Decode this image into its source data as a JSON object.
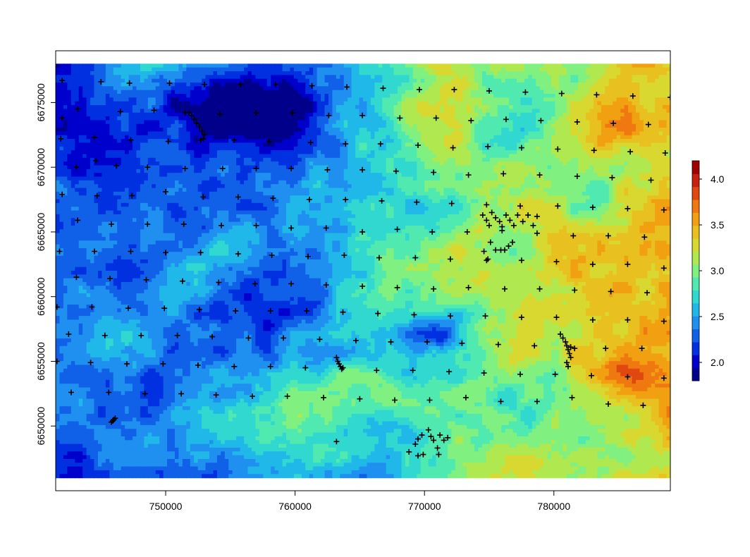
{
  "chart_data": {
    "type": "heatmap",
    "title": "",
    "xlabel": "",
    "ylabel": "",
    "xlim": [
      741500,
      789000
    ],
    "ylim": [
      6645000,
      6679000
    ],
    "raster_extent": {
      "x": [
        741500,
        789000
      ],
      "y": [
        6646000,
        6678000
      ]
    },
    "x_ticks": [
      750000,
      760000,
      770000,
      780000
    ],
    "y_ticks": [
      6650000,
      6655000,
      6660000,
      6665000,
      6670000,
      6675000
    ],
    "x_tick_labels": [
      "750000",
      "760000",
      "770000",
      "780000"
    ],
    "y_tick_labels": [
      "6650000",
      "6655000",
      "6660000",
      "6665000",
      "6670000",
      "6675000"
    ],
    "value_range": [
      1.8,
      4.2
    ],
    "colorbar": {
      "ticks": [
        2.0,
        2.5,
        3.0,
        3.5,
        4.0
      ],
      "tick_labels": [
        "2.0",
        "2.5",
        "3.0",
        "3.5",
        "4.0"
      ],
      "colors": [
        "#00008B",
        "#0000CD",
        "#0030E0",
        "#1060E8",
        "#2090F0",
        "#20B8E8",
        "#30D8D0",
        "#50EAB0",
        "#80F080",
        "#B0E850",
        "#D8D830",
        "#E8C020",
        "#F0A010",
        "#F07810",
        "#E04810",
        "#C82010",
        "#A00000"
      ]
    },
    "grid": false,
    "legend": "colorbar right",
    "points": [
      [
        742000,
        6676700
      ],
      [
        745000,
        6676600
      ],
      [
        747200,
        6676500
      ],
      [
        750300,
        6676500
      ],
      [
        753000,
        6676400
      ],
      [
        755800,
        6676400
      ],
      [
        758500,
        6676400
      ],
      [
        761300,
        6676300
      ],
      [
        764000,
        6676200
      ],
      [
        766800,
        6676100
      ],
      [
        769600,
        6676000
      ],
      [
        772300,
        6676000
      ],
      [
        775000,
        6675900
      ],
      [
        777800,
        6675800
      ],
      [
        780600,
        6675700
      ],
      [
        783300,
        6675600
      ],
      [
        786100,
        6675500
      ],
      [
        789000,
        6675400
      ],
      [
        742000,
        6673800
      ],
      [
        743200,
        6674500
      ],
      [
        746500,
        6674300
      ],
      [
        749100,
        6674400
      ],
      [
        751500,
        6674200
      ],
      [
        754200,
        6674100
      ],
      [
        757000,
        6674200
      ],
      [
        759800,
        6674200
      ],
      [
        762600,
        6674000
      ],
      [
        765200,
        6674000
      ],
      [
        768100,
        6673800
      ],
      [
        770900,
        6673800
      ],
      [
        773600,
        6673600
      ],
      [
        776300,
        6673700
      ],
      [
        779000,
        6673600
      ],
      [
        781800,
        6673500
      ],
      [
        784600,
        6673400
      ],
      [
        787300,
        6673300
      ],
      [
        741900,
        6672200
      ],
      [
        744500,
        6672300
      ],
      [
        747300,
        6672100
      ],
      [
        750200,
        6672000
      ],
      [
        752700,
        6672100
      ],
      [
        755300,
        6672100
      ],
      [
        758000,
        6672000
      ],
      [
        761200,
        6671900
      ],
      [
        763900,
        6671800
      ],
      [
        766600,
        6671800
      ],
      [
        769500,
        6671700
      ],
      [
        772200,
        6671500
      ],
      [
        774900,
        6671600
      ],
      [
        777500,
        6671500
      ],
      [
        780300,
        6671400
      ],
      [
        783100,
        6671300
      ],
      [
        785900,
        6671200
      ],
      [
        788600,
        6671100
      ],
      [
        743100,
        6670000
      ],
      [
        744600,
        6670500
      ],
      [
        746200,
        6670100
      ],
      [
        748600,
        6670000
      ],
      [
        751500,
        6669900
      ],
      [
        754400,
        6669900
      ],
      [
        757000,
        6669900
      ],
      [
        759700,
        6669900
      ],
      [
        762500,
        6669800
      ],
      [
        765200,
        6669800
      ],
      [
        767800,
        6669700
      ],
      [
        770700,
        6669600
      ],
      [
        773400,
        6669400
      ],
      [
        776100,
        6669500
      ],
      [
        778900,
        6669400
      ],
      [
        781800,
        6669300
      ],
      [
        784500,
        6669200
      ],
      [
        787500,
        6669000
      ],
      [
        742000,
        6667900
      ],
      [
        744700,
        6667800
      ],
      [
        747400,
        6667800
      ],
      [
        750000,
        6668100
      ],
      [
        752900,
        6667700
      ],
      [
        755600,
        6667700
      ],
      [
        758300,
        6667600
      ],
      [
        761100,
        6667500
      ],
      [
        763900,
        6667500
      ],
      [
        766700,
        6667400
      ],
      [
        769400,
        6667300
      ],
      [
        772100,
        6667200
      ],
      [
        774800,
        6667100
      ],
      [
        777400,
        6667000
      ],
      [
        780300,
        6667000
      ],
      [
        783000,
        6666900
      ],
      [
        785700,
        6666800
      ],
      [
        788500,
        6666700
      ],
      [
        743200,
        6665900
      ],
      [
        745800,
        6665600
      ],
      [
        748600,
        6665600
      ],
      [
        751400,
        6665600
      ],
      [
        754300,
        6665500
      ],
      [
        757000,
        6665500
      ],
      [
        759700,
        6665300
      ],
      [
        762400,
        6665300
      ],
      [
        765200,
        6665000
      ],
      [
        767900,
        6665200
      ],
      [
        770600,
        6665000
      ],
      [
        773300,
        6665000
      ],
      [
        776000,
        6665100
      ],
      [
        778700,
        6664900
      ],
      [
        781500,
        6664700
      ],
      [
        784200,
        6664700
      ],
      [
        787000,
        6664600
      ],
      [
        741800,
        6663500
      ],
      [
        744500,
        6663500
      ],
      [
        747300,
        6663500
      ],
      [
        750000,
        6663400
      ],
      [
        752700,
        6663400
      ],
      [
        755600,
        6663300
      ],
      [
        758200,
        6663200
      ],
      [
        761000,
        6663100
      ],
      [
        763800,
        6663200
      ],
      [
        766500,
        6663000
      ],
      [
        769300,
        6663000
      ],
      [
        772000,
        6662900
      ],
      [
        774800,
        6662800
      ],
      [
        777500,
        6662800
      ],
      [
        780200,
        6662700
      ],
      [
        783000,
        6662500
      ],
      [
        785700,
        6662500
      ],
      [
        788500,
        6662200
      ],
      [
        743100,
        6661500
      ],
      [
        745700,
        6661400
      ],
      [
        748500,
        6661300
      ],
      [
        751300,
        6661200
      ],
      [
        754100,
        6661100
      ],
      [
        756900,
        6661000
      ],
      [
        759700,
        6661000
      ],
      [
        762400,
        6660900
      ],
      [
        765200,
        6660800
      ],
      [
        767900,
        6660700
      ],
      [
        770700,
        6660600
      ],
      [
        773400,
        6660700
      ],
      [
        776200,
        6660600
      ],
      [
        778900,
        6660600
      ],
      [
        781600,
        6660500
      ],
      [
        784400,
        6660400
      ],
      [
        787200,
        6660300
      ],
      [
        741600,
        6659200
      ],
      [
        744300,
        6659200
      ],
      [
        747100,
        6659100
      ],
      [
        749900,
        6659100
      ],
      [
        752600,
        6659000
      ],
      [
        755400,
        6658900
      ],
      [
        758100,
        6658900
      ],
      [
        760900,
        6658900
      ],
      [
        763700,
        6658800
      ],
      [
        766400,
        6658700
      ],
      [
        769200,
        6658600
      ],
      [
        772000,
        6658500
      ],
      [
        774700,
        6658500
      ],
      [
        777500,
        6658400
      ],
      [
        780200,
        6658400
      ],
      [
        783000,
        6658200
      ],
      [
        785700,
        6658200
      ],
      [
        788500,
        6658100
      ],
      [
        742500,
        6657100
      ],
      [
        745300,
        6657000
      ],
      [
        748100,
        6657000
      ],
      [
        750900,
        6657000
      ],
      [
        753600,
        6656900
      ],
      [
        756400,
        6656800
      ],
      [
        759100,
        6656800
      ],
      [
        761900,
        6656700
      ],
      [
        764700,
        6656600
      ],
      [
        767400,
        6656500
      ],
      [
        770200,
        6656500
      ],
      [
        772900,
        6656400
      ],
      [
        775700,
        6656300
      ],
      [
        778500,
        6656200
      ],
      [
        781300,
        6656100
      ],
      [
        784000,
        6656000
      ],
      [
        786800,
        6656000
      ],
      [
        741600,
        6655000
      ],
      [
        744200,
        6654900
      ],
      [
        747000,
        6654800
      ],
      [
        749800,
        6654800
      ],
      [
        752500,
        6654700
      ],
      [
        755300,
        6654600
      ],
      [
        758100,
        6654600
      ],
      [
        760800,
        6654500
      ],
      [
        763600,
        6654400
      ],
      [
        766300,
        6654300
      ],
      [
        769100,
        6654300
      ],
      [
        771900,
        6654200
      ],
      [
        774600,
        6654100
      ],
      [
        777400,
        6654000
      ],
      [
        780100,
        6654000
      ],
      [
        782900,
        6653900
      ],
      [
        785700,
        6653800
      ],
      [
        788500,
        6653700
      ],
      [
        742700,
        6652600
      ],
      [
        745600,
        6652600
      ],
      [
        748400,
        6652500
      ],
      [
        751200,
        6652500
      ],
      [
        753900,
        6652400
      ],
      [
        756700,
        6652300
      ],
      [
        759400,
        6652300
      ],
      [
        762200,
        6652200
      ],
      [
        765000,
        6652100
      ],
      [
        767700,
        6652000
      ],
      [
        770400,
        6652000
      ],
      [
        773200,
        6652200
      ],
      [
        775900,
        6651900
      ],
      [
        778700,
        6651900
      ],
      [
        781400,
        6652200
      ],
      [
        784200,
        6651700
      ],
      [
        786900,
        6651600
      ],
      [
        763200,
        6648800
      ],
      [
        768800,
        6648000
      ],
      [
        769300,
        6648600
      ],
      [
        769500,
        6649000
      ],
      [
        769800,
        6649300
      ],
      [
        770300,
        6649700
      ],
      [
        770500,
        6649200
      ],
      [
        770700,
        6648900
      ],
      [
        771000,
        6648300
      ],
      [
        771200,
        6649300
      ],
      [
        771500,
        6648900
      ],
      [
        771800,
        6649100
      ],
      [
        769500,
        6647700
      ],
      [
        769900,
        6647800
      ],
      [
        771100,
        6647800
      ],
      [
        751800,
        6674200
      ],
      [
        752000,
        6674000
      ],
      [
        752200,
        6673700
      ],
      [
        752400,
        6673400
      ],
      [
        752600,
        6673100
      ],
      [
        752800,
        6672800
      ],
      [
        753000,
        6672500
      ],
      [
        752900,
        6672200
      ],
      [
        780500,
        6657100
      ],
      [
        780700,
        6656800
      ],
      [
        780900,
        6656500
      ],
      [
        781000,
        6656200
      ],
      [
        781100,
        6655900
      ],
      [
        781200,
        6655600
      ],
      [
        781300,
        6655300
      ],
      [
        781000,
        6654900
      ],
      [
        781100,
        6654600
      ],
      [
        781300,
        6656100
      ],
      [
        781600,
        6656000
      ],
      [
        745800,
        6650300
      ],
      [
        745900,
        6650400
      ],
      [
        746000,
        6650500
      ],
      [
        746100,
        6650600
      ],
      [
        763200,
        6655300
      ],
      [
        763300,
        6655000
      ],
      [
        763400,
        6654800
      ],
      [
        763500,
        6654600
      ],
      [
        763700,
        6654500
      ],
      [
        774500,
        6666300
      ],
      [
        774800,
        6665900
      ],
      [
        775000,
        6665500
      ],
      [
        775200,
        6666500
      ],
      [
        775500,
        6666100
      ],
      [
        775800,
        6665800
      ],
      [
        776000,
        6665400
      ],
      [
        776300,
        6666300
      ],
      [
        776600,
        6665900
      ],
      [
        776900,
        6665500
      ],
      [
        777200,
        6666300
      ],
      [
        777600,
        6665800
      ],
      [
        778000,
        6666300
      ],
      [
        778400,
        6665500
      ],
      [
        778700,
        6666200
      ],
      [
        775100,
        6664200
      ],
      [
        775500,
        6663600
      ],
      [
        775900,
        6663600
      ],
      [
        776200,
        6663600
      ],
      [
        776500,
        6663900
      ],
      [
        776800,
        6664200
      ],
      [
        774600,
        6663500
      ],
      [
        774900,
        6662900
      ]
    ]
  }
}
